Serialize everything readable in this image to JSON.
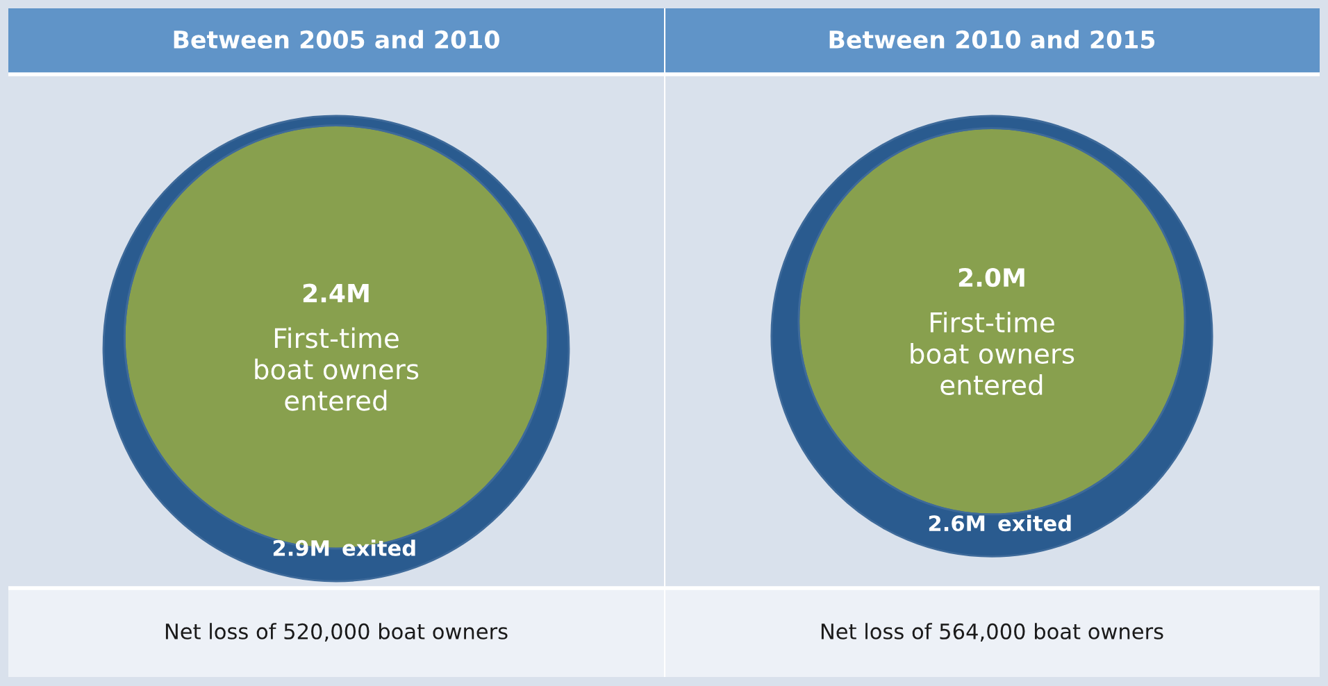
{
  "chart_data": [
    {
      "type": "other",
      "title": "Between 2005 and 2010",
      "categories": [
        "First-time\nboat owners\nentered",
        "exited"
      ],
      "values": [
        2.4,
        2.9
      ],
      "value_labels": [
        "2.4M",
        "2.9M"
      ],
      "colors": [
        "#88a04e",
        "#2a5b8f"
      ],
      "annotations": [
        "Net loss of 520,000 boat owners"
      ]
    },
    {
      "type": "other",
      "title": "Between 2010 and 2015",
      "categories": [
        "First-time\nboat owners\nentered",
        "exited"
      ],
      "values": [
        2.0,
        2.6
      ],
      "value_labels": [
        "2.0M",
        "2.6M"
      ],
      "colors": [
        "#88a04e",
        "#2a5b8f"
      ],
      "annotations": [
        "Net loss of 564,000 boat owners"
      ]
    }
  ]
}
